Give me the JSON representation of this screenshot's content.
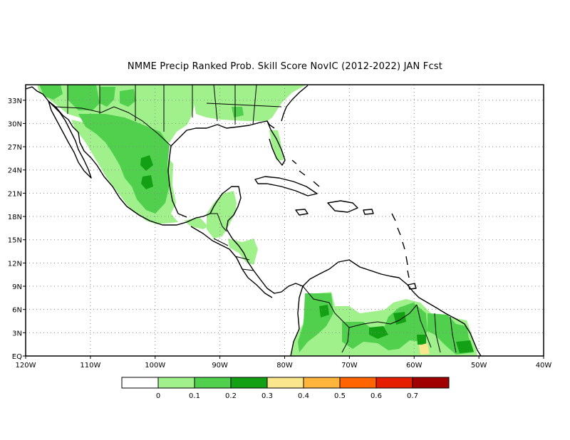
{
  "title": "NMME Precip Ranked Prob. Skill Score NovIC (2012-2022) JAN Fcst",
  "map": {
    "lon_range": [
      -120,
      -40
    ],
    "lat_range": [
      0,
      35
    ],
    "x_ticks": [
      {
        "value": -120,
        "label": "120W"
      },
      {
        "value": -110,
        "label": "110W"
      },
      {
        "value": -100,
        "label": "100W"
      },
      {
        "value": -90,
        "label": "90W"
      },
      {
        "value": -80,
        "label": "80W"
      },
      {
        "value": -70,
        "label": "70W"
      },
      {
        "value": -60,
        "label": "60W"
      },
      {
        "value": -50,
        "label": "50W"
      },
      {
        "value": -40,
        "label": "40W"
      }
    ],
    "y_ticks": [
      {
        "value": 0,
        "label": "EQ"
      },
      {
        "value": 3,
        "label": "3N"
      },
      {
        "value": 6,
        "label": "6N"
      },
      {
        "value": 9,
        "label": "9N"
      },
      {
        "value": 12,
        "label": "12N"
      },
      {
        "value": 15,
        "label": "15N"
      },
      {
        "value": 18,
        "label": "18N"
      },
      {
        "value": 21,
        "label": "21N"
      },
      {
        "value": 24,
        "label": "24N"
      },
      {
        "value": 27,
        "label": "27N"
      },
      {
        "value": 30,
        "label": "30N"
      },
      {
        "value": 33,
        "label": "33N"
      }
    ],
    "grid": "dotted"
  },
  "legend": {
    "colors": [
      "#ffffff",
      "#a0f08c",
      "#50d04c",
      "#14a014",
      "#fae68c",
      "#ffb43c",
      "#ff6400",
      "#e61e00",
      "#a00000"
    ],
    "labels": [
      "0",
      "0.1",
      "0.2",
      "0.3",
      "0.4",
      "0.5",
      "0.6",
      "0.7"
    ]
  }
}
